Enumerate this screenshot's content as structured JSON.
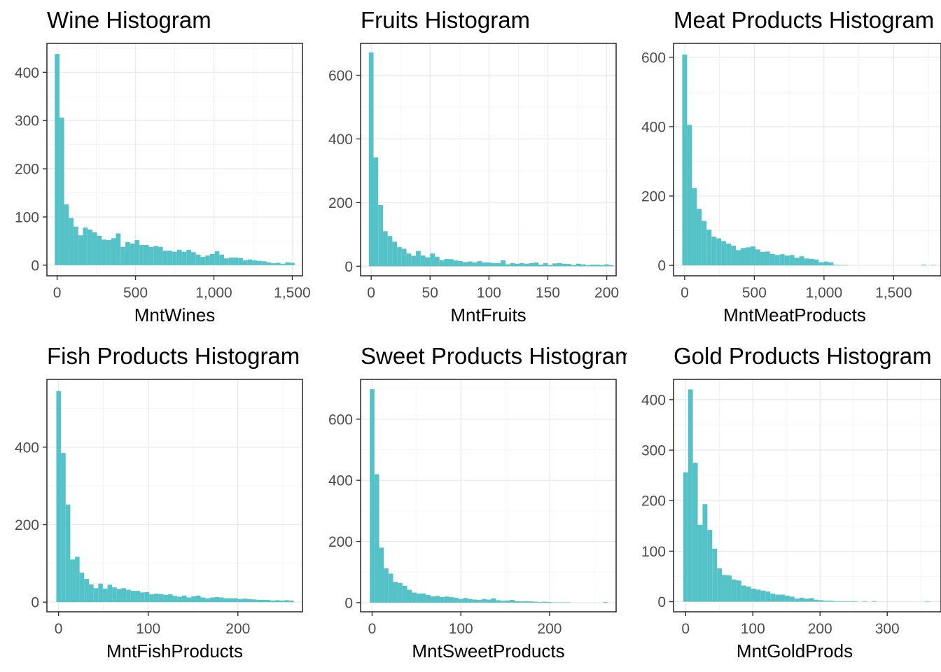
{
  "colors": {
    "bar": "#4cbfc5",
    "background": "#ffffff"
  },
  "chart_data": [
    {
      "type": "bar",
      "title": "Wine Histogram",
      "xlabel": "MntWines",
      "ylabel": "",
      "xlim": [
        -65,
        1565
      ],
      "ylim": [
        -22,
        460
      ],
      "x_ticks": [
        0,
        500,
        1000,
        1500
      ],
      "x_tick_labels": [
        "0",
        "500",
        "1,000",
        "1,500"
      ],
      "y_ticks": [
        0,
        100,
        200,
        300,
        400
      ],
      "y_tick_labels": [
        "0",
        "100",
        "200",
        "300",
        "400"
      ],
      "bin_start": -15,
      "bin_width": 30,
      "values": [
        438,
        306,
        126,
        98,
        80,
        62,
        78,
        74,
        68,
        61,
        53,
        52,
        56,
        66,
        38,
        48,
        45,
        52,
        42,
        42,
        38,
        40,
        38,
        30,
        30,
        28,
        32,
        28,
        32,
        27,
        22,
        17,
        20,
        23,
        29,
        22,
        14,
        16,
        16,
        15,
        10,
        12,
        10,
        9,
        8,
        6,
        4,
        5,
        3,
        6,
        5
      ]
    },
    {
      "type": "bar",
      "title": "Fruits Histogram",
      "xlabel": "MntFruits",
      "ylabel": "",
      "xlim": [
        -9,
        208
      ],
      "ylim": [
        -30,
        700
      ],
      "x_ticks": [
        0,
        50,
        100,
        150,
        200
      ],
      "x_tick_labels": [
        "0",
        "50",
        "100",
        "150",
        "200"
      ],
      "y_ticks": [
        0,
        200,
        400,
        600
      ],
      "y_tick_labels": [
        "0",
        "200",
        "400",
        "600"
      ],
      "bin_start": -2,
      "bin_width": 4,
      "values": [
        672,
        342,
        192,
        110,
        95,
        77,
        60,
        55,
        40,
        33,
        48,
        34,
        28,
        40,
        30,
        19,
        23,
        22,
        18,
        16,
        13,
        15,
        12,
        16,
        12,
        12,
        10,
        10,
        19,
        6,
        10,
        8,
        10,
        8,
        10,
        12,
        5,
        10,
        4,
        9,
        10,
        8,
        7,
        4,
        8,
        6,
        3,
        5,
        5,
        4,
        6,
        3
      ]
    },
    {
      "type": "bar",
      "title": "Meat Products Histogram",
      "xlabel": "MntMeatProducts",
      "ylabel": "",
      "xlim": [
        -80,
        1840
      ],
      "ylim": [
        -30,
        640
      ],
      "x_ticks": [
        0,
        500,
        1000,
        1500
      ],
      "x_tick_labels": [
        "0",
        "500",
        "1,000",
        "1,500"
      ],
      "y_ticks": [
        0,
        200,
        400,
        600
      ],
      "y_tick_labels": [
        "0",
        "200",
        "400",
        "600"
      ],
      "bin_start": -17.5,
      "bin_width": 35,
      "values": [
        608,
        405,
        223,
        163,
        128,
        103,
        83,
        78,
        70,
        63,
        57,
        44,
        50,
        52,
        55,
        46,
        39,
        40,
        33,
        30,
        32,
        28,
        30,
        22,
        26,
        20,
        19,
        17,
        9,
        11,
        9,
        2,
        1,
        1,
        0,
        0,
        0,
        0,
        0,
        0,
        0,
        0,
        0,
        0,
        0,
        0,
        0,
        0,
        0,
        2,
        0,
        1
      ]
    },
    {
      "type": "bar",
      "title": "Fish Products Histogram",
      "xlabel": "MntFishProducts",
      "ylabel": "",
      "xlim": [
        -13,
        272
      ],
      "ylim": [
        -25,
        575
      ],
      "x_ticks": [
        0,
        100,
        200
      ],
      "x_tick_labels": [
        "0",
        "100",
        "200"
      ],
      "y_ticks": [
        0,
        200,
        400
      ],
      "y_tick_labels": [
        "0",
        "200",
        "400"
      ],
      "bin_start": -2.5,
      "bin_width": 5.19,
      "values": [
        545,
        385,
        252,
        110,
        117,
        76,
        60,
        46,
        36,
        48,
        35,
        45,
        38,
        34,
        36,
        32,
        29,
        29,
        25,
        26,
        20,
        22,
        21,
        19,
        20,
        16,
        14,
        17,
        12,
        15,
        17,
        12,
        10,
        12,
        13,
        12,
        10,
        10,
        10,
        8,
        9,
        8,
        7,
        6,
        6,
        6,
        4,
        5,
        4,
        5,
        4
      ]
    },
    {
      "type": "bar",
      "title": "Sweet Products Histogram",
      "xlabel": "MntSweetProducts",
      "ylabel": "",
      "xlim": [
        -13,
        275
      ],
      "ylim": [
        -30,
        730
      ],
      "x_ticks": [
        0,
        100,
        200
      ],
      "x_tick_labels": [
        "0",
        "100",
        "200"
      ],
      "y_ticks": [
        0,
        200,
        400,
        600
      ],
      "y_tick_labels": [
        "0",
        "200",
        "400",
        "600"
      ],
      "bin_start": -2.6,
      "bin_width": 5.26,
      "values": [
        698,
        420,
        180,
        112,
        95,
        68,
        64,
        55,
        42,
        33,
        30,
        30,
        25,
        20,
        22,
        18,
        20,
        18,
        16,
        12,
        15,
        12,
        10,
        9,
        12,
        10,
        14,
        8,
        6,
        7,
        9,
        5,
        4,
        5,
        4,
        3,
        2,
        3,
        2,
        1,
        1,
        1,
        1,
        0,
        0,
        0,
        0,
        0,
        0,
        0,
        2
      ]
    },
    {
      "type": "bar",
      "title": "Gold Products Histogram",
      "xlabel": "MntGoldProds",
      "ylabel": "",
      "xlim": [
        -18,
        380
      ],
      "ylim": [
        -20,
        440
      ],
      "x_ticks": [
        0,
        100,
        200,
        300
      ],
      "x_tick_labels": [
        "0",
        "100",
        "200",
        "300"
      ],
      "y_ticks": [
        0,
        100,
        200,
        300,
        400
      ],
      "y_tick_labels": [
        "0",
        "100",
        "200",
        "300",
        "400"
      ],
      "bin_start": -3.6,
      "bin_width": 7.2,
      "values": [
        256,
        420,
        275,
        152,
        193,
        142,
        105,
        66,
        53,
        52,
        44,
        42,
        32,
        30,
        26,
        24,
        22,
        20,
        16,
        14,
        14,
        12,
        10,
        6,
        8,
        6,
        7,
        4,
        3,
        2,
        2,
        1,
        1,
        1,
        1,
        1,
        0,
        1,
        0,
        1,
        0,
        0,
        0,
        0,
        0,
        0,
        0,
        0,
        0,
        0,
        1
      ]
    }
  ]
}
